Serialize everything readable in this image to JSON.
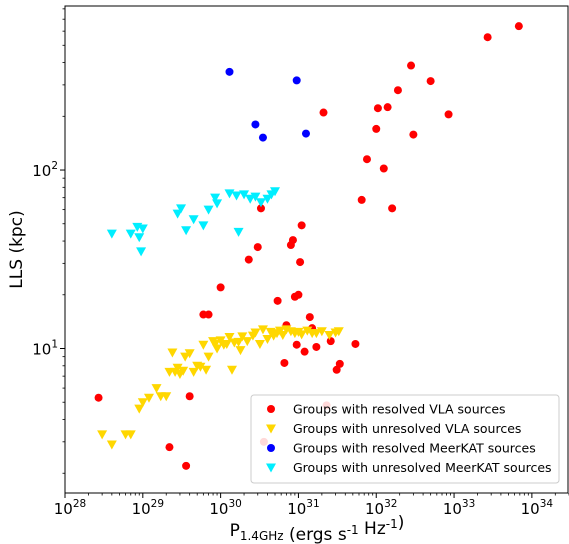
{
  "chart_data": {
    "type": "scatter",
    "xscale": "log",
    "yscale": "log",
    "xlim": [
      1e+28,
      3e+34
    ],
    "ylim": [
      1.55,
      830
    ],
    "xlabel": "P_{1.4GHz} (ergs s^{-1} Hz^{-1})",
    "ylabel": "LLS (kpc)",
    "x_ticks": [
      {
        "value": 1e+28,
        "base": "10",
        "exp": "28"
      },
      {
        "value": 1e+29,
        "base": "10",
        "exp": "29"
      },
      {
        "value": 1e+30,
        "base": "10",
        "exp": "30"
      },
      {
        "value": 1e+31,
        "base": "10",
        "exp": "31"
      },
      {
        "value": 1e+32,
        "base": "10",
        "exp": "32"
      },
      {
        "value": 1e+33,
        "base": "10",
        "exp": "33"
      },
      {
        "value": 1e+34,
        "base": "10",
        "exp": "34"
      }
    ],
    "y_ticks": [
      {
        "value": 10,
        "base": "10",
        "exp": "1"
      },
      {
        "value": 100,
        "base": "10",
        "exp": "2"
      }
    ],
    "grid": false,
    "legend_position": "lower-right",
    "series": [
      {
        "name": "Groups with resolved VLA sources",
        "marker": "circle",
        "color": "#ff0000",
        "points": [
          [
            2.7e+28,
            5.3
          ],
          [
            2.2e+29,
            2.8
          ],
          [
            3.6e+29,
            2.2
          ],
          [
            4e+29,
            5.4
          ],
          [
            6e+29,
            15.5
          ],
          [
            7e+29,
            15.5
          ],
          [
            1e+30,
            22
          ],
          [
            2.3e+30,
            31.5
          ],
          [
            3e+30,
            37
          ],
          [
            3.3e+30,
            61
          ],
          [
            3.6e+30,
            3.0
          ],
          [
            5.4e+30,
            18.5
          ],
          [
            6.6e+30,
            8.3
          ],
          [
            7e+30,
            13.5
          ],
          [
            8e+30,
            38
          ],
          [
            8.5e+30,
            40.5
          ],
          [
            9e+30,
            19.5
          ],
          [
            9.5e+30,
            10.5
          ],
          [
            1e+31,
            20
          ],
          [
            1.05e+31,
            30.5
          ],
          [
            1.1e+31,
            49
          ],
          [
            1.2e+31,
            9.6
          ],
          [
            1.4e+31,
            15
          ],
          [
            1.5e+31,
            13
          ],
          [
            1.7e+31,
            10.2
          ],
          [
            2.1e+31,
            210
          ],
          [
            2.3e+31,
            4.8
          ],
          [
            2.6e+31,
            11
          ],
          [
            3.1e+31,
            7.6
          ],
          [
            3.4e+31,
            8.2
          ],
          [
            5.4e+31,
            10.6
          ],
          [
            6.5e+31,
            68
          ],
          [
            7.6e+31,
            115
          ],
          [
            1e+32,
            170
          ],
          [
            1.05e+32,
            222
          ],
          [
            1.25e+32,
            102
          ],
          [
            1.4e+32,
            225
          ],
          [
            1.6e+32,
            61
          ],
          [
            1.9e+32,
            280
          ],
          [
            2.8e+32,
            385
          ],
          [
            3e+32,
            158
          ],
          [
            5e+32,
            315
          ],
          [
            8.5e+32,
            205
          ],
          [
            2.7e+33,
            555
          ],
          [
            6.8e+33,
            640
          ]
        ]
      },
      {
        "name": "Groups with unresolved VLA sources",
        "marker": "triangle-down",
        "color": "#ffd700",
        "points": [
          [
            3e+28,
            3.3
          ],
          [
            4e+28,
            2.9
          ],
          [
            6e+28,
            3.3
          ],
          [
            7e+28,
            3.3
          ],
          [
            9e+28,
            4.6
          ],
          [
            1e+29,
            5.0
          ],
          [
            1.2e+29,
            5.3
          ],
          [
            1.5e+29,
            6.0
          ],
          [
            1.7e+29,
            5.4
          ],
          [
            2e+29,
            5.4
          ],
          [
            2.2e+29,
            7.4
          ],
          [
            2.4e+29,
            9.5
          ],
          [
            2.6e+29,
            7.4
          ],
          [
            2.8e+29,
            7.8
          ],
          [
            3e+29,
            7.2
          ],
          [
            3.3e+29,
            7.5
          ],
          [
            3.5e+29,
            9.0
          ],
          [
            4e+29,
            9.4
          ],
          [
            4.5e+29,
            7.4
          ],
          [
            5e+29,
            8.0
          ],
          [
            5.5e+29,
            7.9
          ],
          [
            6e+29,
            10.5
          ],
          [
            6.5e+29,
            7.6
          ],
          [
            7e+29,
            9.0
          ],
          [
            8e+29,
            11.0
          ],
          [
            8.5e+29,
            10.6
          ],
          [
            9e+29,
            10.0
          ],
          [
            1e+30,
            11.1
          ],
          [
            1.1e+30,
            10.5
          ],
          [
            1.2e+30,
            10.6
          ],
          [
            1.3e+30,
            11.6
          ],
          [
            1.4e+30,
            7.6
          ],
          [
            1.5e+30,
            10.8
          ],
          [
            1.7e+30,
            10.9
          ],
          [
            1.8e+30,
            9.8
          ],
          [
            1.9e+30,
            11.7
          ],
          [
            2.2e+30,
            11.0
          ],
          [
            2.6e+30,
            11.8
          ],
          [
            2.8e+30,
            12.3
          ],
          [
            3.2e+30,
            10.6
          ],
          [
            3.5e+30,
            12.8
          ],
          [
            4e+30,
            11.3
          ],
          [
            4.4e+30,
            12.4
          ],
          [
            4.8e+30,
            11.8
          ],
          [
            5.3e+30,
            12.2
          ],
          [
            5.8e+30,
            12.6
          ],
          [
            6.3e+30,
            11.9
          ],
          [
            7e+30,
            12.8
          ],
          [
            8e+30,
            12.5
          ],
          [
            9e+30,
            12.2
          ],
          [
            1e+31,
            12.4
          ],
          [
            1.1e+31,
            12.0
          ],
          [
            1.3e+31,
            12.6
          ],
          [
            1.5e+31,
            12.2
          ],
          [
            1.7e+31,
            12.2
          ],
          [
            2e+31,
            12.5
          ],
          [
            2.5e+31,
            11.9
          ],
          [
            3e+31,
            12.3
          ],
          [
            3.3e+31,
            12.5
          ]
        ]
      },
      {
        "name": "Groups with resolved MeerKAT sources",
        "marker": "circle",
        "color": "#0000ff",
        "points": [
          [
            1.3e+30,
            355
          ],
          [
            2.8e+30,
            180
          ],
          [
            3.5e+30,
            152
          ],
          [
            9.5e+30,
            318
          ],
          [
            1.25e+31,
            160
          ]
        ]
      },
      {
        "name": "Groups with unresolved MeerKAT sources",
        "marker": "triangle-down",
        "color": "#00eeff",
        "points": [
          [
            4e+28,
            44
          ],
          [
            7e+28,
            44
          ],
          [
            8.5e+28,
            48
          ],
          [
            9e+28,
            42
          ],
          [
            9.5e+28,
            35
          ],
          [
            1e+29,
            47
          ],
          [
            2.8e+29,
            57
          ],
          [
            3.1e+29,
            61
          ],
          [
            3.6e+29,
            46
          ],
          [
            4.5e+29,
            53
          ],
          [
            6e+29,
            49
          ],
          [
            7e+29,
            60
          ],
          [
            8.5e+29,
            70
          ],
          [
            9e+29,
            65
          ],
          [
            1.3e+30,
            74
          ],
          [
            1.6e+30,
            72
          ],
          [
            1.7e+30,
            45
          ],
          [
            2e+30,
            73
          ],
          [
            2.4e+30,
            69
          ],
          [
            2.8e+30,
            71
          ],
          [
            3.3e+30,
            66
          ],
          [
            4e+30,
            69
          ],
          [
            4.5e+30,
            73
          ],
          [
            5e+30,
            76
          ]
        ]
      }
    ]
  }
}
